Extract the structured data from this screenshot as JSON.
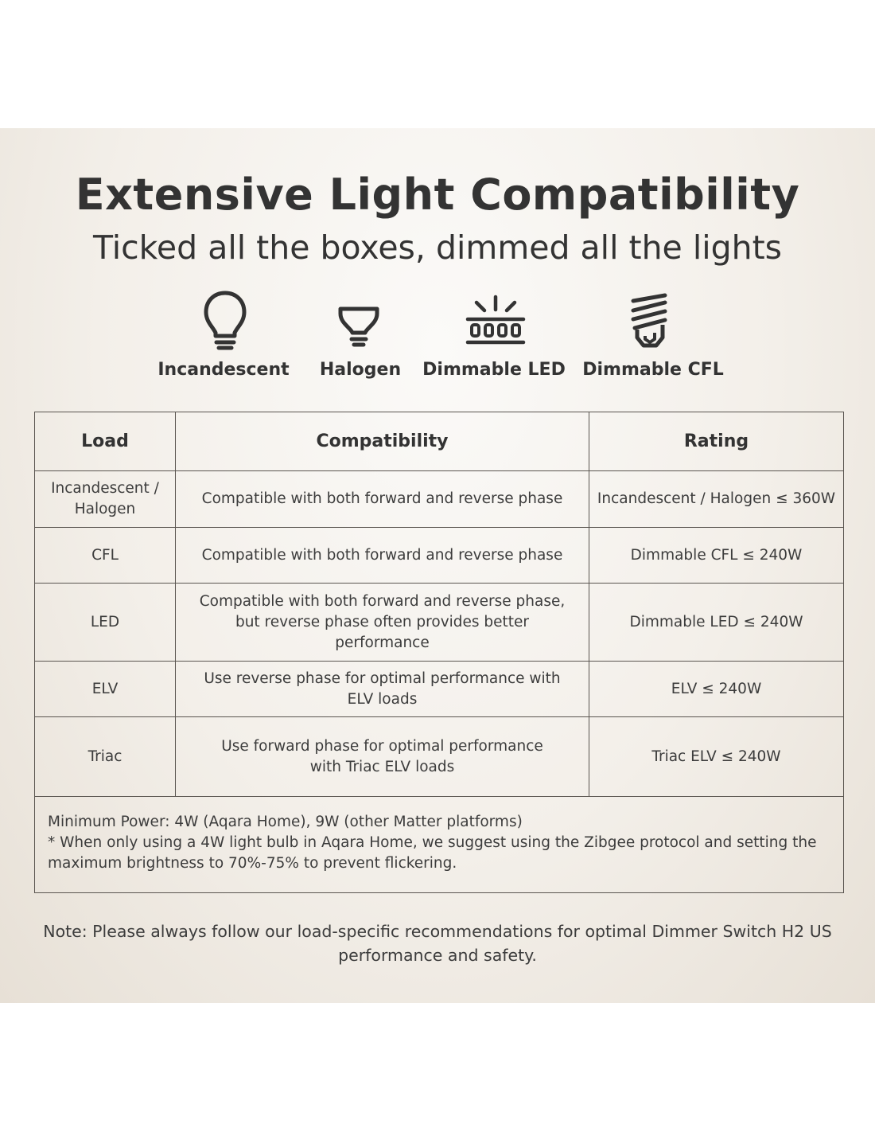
{
  "header": {
    "title": "Extensive Light Compatibility",
    "subtitle": "Ticked all the boxes, dimmed all the lights"
  },
  "bulb_types": [
    {
      "label": "Incandescent",
      "icon": "incandescent-bulb-icon"
    },
    {
      "label": "Halogen",
      "icon": "halogen-bulb-icon"
    },
    {
      "label": "Dimmable LED",
      "icon": "led-strip-icon"
    },
    {
      "label": "Dimmable CFL",
      "icon": "cfl-bulb-icon"
    }
  ],
  "table": {
    "headers": [
      "Load",
      "Compatibility",
      "Rating"
    ],
    "rows": [
      {
        "load": "Incandescent / Halogen",
        "compatibility": "Compatible with both forward and reverse phase",
        "rating": "Incandescent / Halogen ≤ 360W"
      },
      {
        "load": "CFL",
        "compatibility": "Compatible with both forward and reverse phase",
        "rating": "Dimmable CFL ≤ 240W"
      },
      {
        "load": "LED",
        "compatibility": "Compatible with both forward and reverse phase, but reverse phase often provides better performance",
        "rating": "Dimmable LED ≤ 240W"
      },
      {
        "load": "ELV",
        "compatibility": "Use reverse phase for optimal performance with ELV loads",
        "rating": "ELV ≤ 240W"
      },
      {
        "load": "Triac",
        "compatibility": "Use forward phase for optimal performance with Triac ELV loads",
        "rating": "Triac ELV ≤ 240W"
      }
    ],
    "notes": [
      "Minimum Power: 4W (Aqara Home), 9W (other Matter platforms)",
      "* When only using a 4W light bulb in Aqara Home, we suggest using the Zibgee protocol and setting the maximum brightness to 70%-75% to prevent flickering."
    ]
  },
  "footer_note": "Note: Please always follow our load-specific recommendations for optimal Dimmer Switch H2 US performance and safety.",
  "colors": {
    "text": "#333333",
    "border": "#5a5550",
    "panel": "#f3efe9"
  }
}
